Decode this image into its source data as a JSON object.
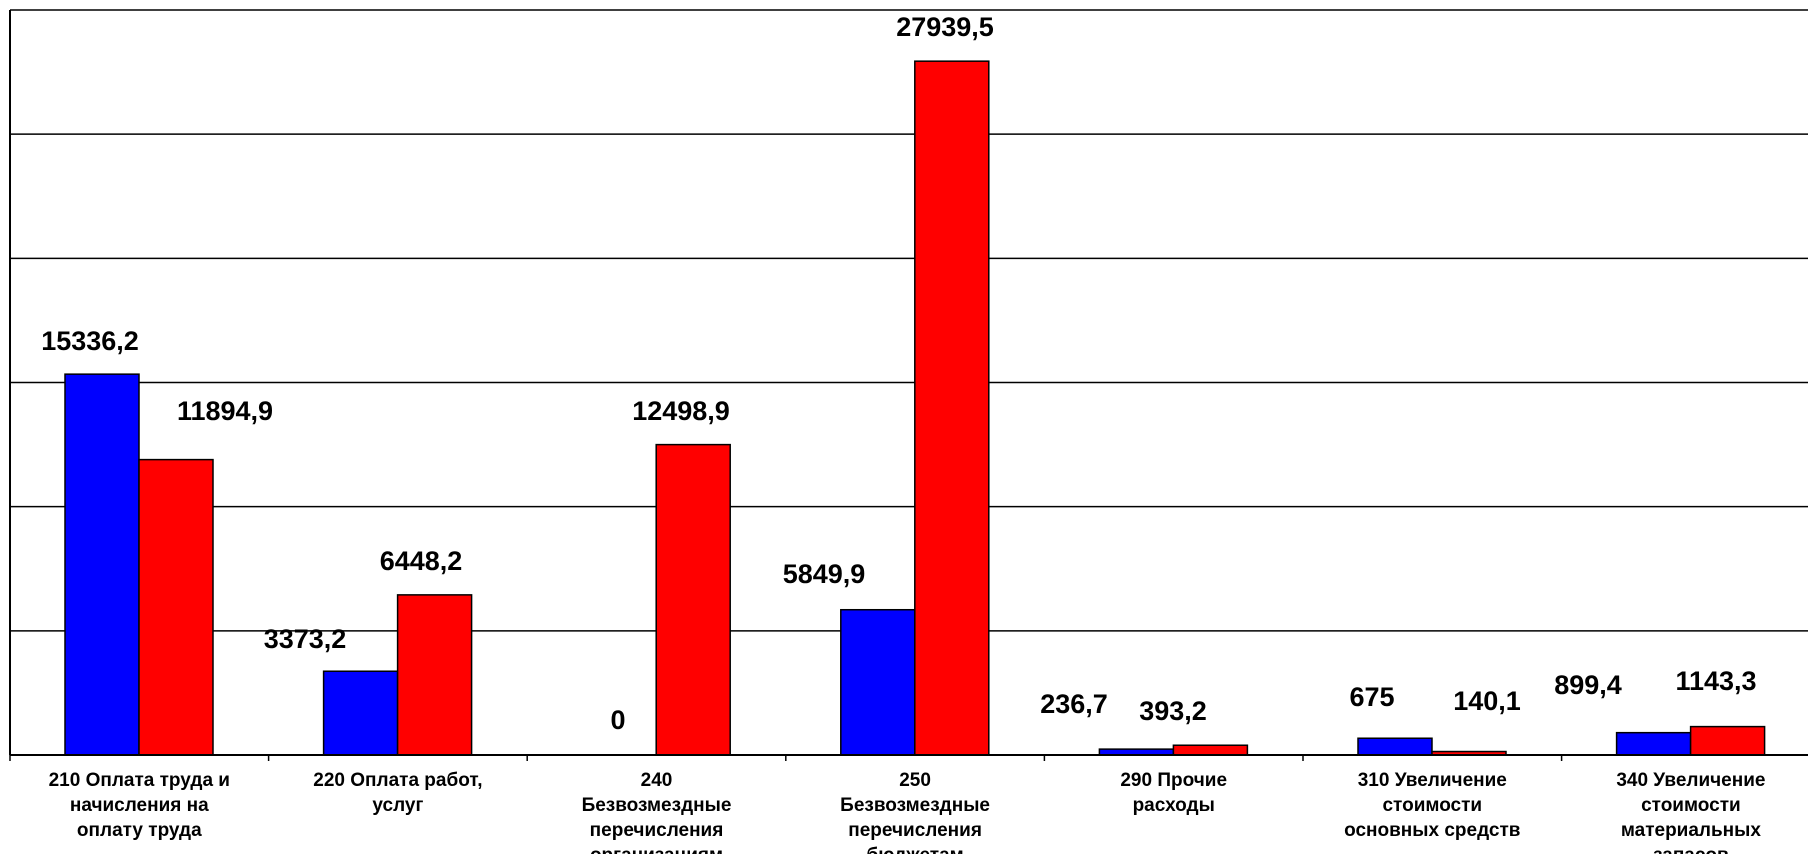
{
  "chart_data": {
    "type": "bar",
    "categories": [
      [
        "210 Оплата труда и",
        "начисления на",
        "оплату труда"
      ],
      [
        "220 Оплата работ,",
        "услуг"
      ],
      [
        "240",
        "Безвозмездные",
        "перечисления",
        "организациям"
      ],
      [
        "250",
        "Безвозмездные",
        "перечисления",
        "бюджетам"
      ],
      [
        "290 Прочие",
        "расходы"
      ],
      [
        "310 Увеличение",
        "стоимости",
        "основных средств"
      ],
      [
        "340 Увеличение",
        "стоимости",
        "материальных",
        "запасов"
      ]
    ],
    "series": [
      {
        "values": [
          15336.2,
          3373.2,
          0,
          5849.9,
          236.7,
          675,
          899.4
        ],
        "labels": [
          "15336,2",
          "3373,2",
          "0",
          "5849,9",
          "236,7",
          "675",
          "899,4"
        ],
        "color": "#0000ff"
      },
      {
        "values": [
          11894.9,
          6448.2,
          12498.9,
          27939.5,
          393.2,
          140.1,
          1143.3
        ],
        "labels": [
          "11894,9",
          "6448,2",
          "12498,9",
          "27939,5",
          "393,2",
          "140,1",
          "1143,3"
        ],
        "color": "#ff0000"
      }
    ],
    "ylim": [
      0,
      30000
    ],
    "gridlines": true,
    "legend": false,
    "title": "",
    "xlabel": "",
    "ylabel": ""
  }
}
